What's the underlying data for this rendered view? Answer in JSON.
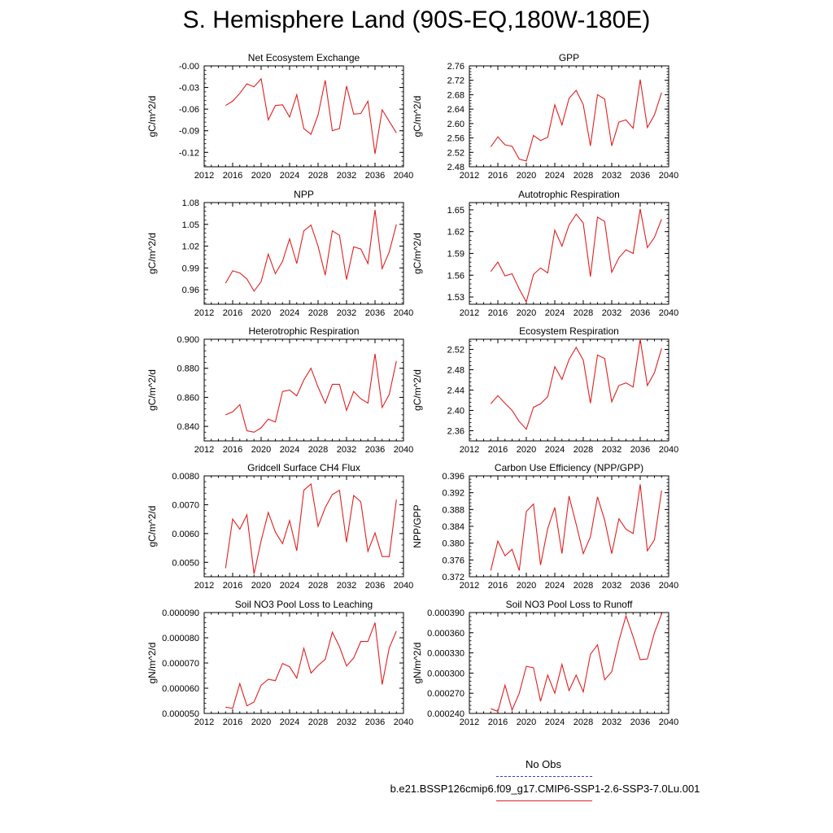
{
  "title": "S. Hemisphere Land (90S-EQ,180W-180E)",
  "legend": {
    "obs_label": "No Obs",
    "obs_color": "#3a3ad0",
    "case_label": "b.e21.BSSP126cmip6.f09_g17.CMIP6-SSP1-2.6-SSP3-7.0Lu.001",
    "case_color": "#e02020"
  },
  "chart_data": [
    {
      "type": "line",
      "title": "Net Ecosystem Exchange",
      "ylabel": "gC/m^2/d",
      "xlim": [
        2012,
        2040
      ],
      "xticks": [
        2012,
        2016,
        2020,
        2024,
        2028,
        2032,
        2036,
        2040
      ],
      "ylim": [
        -0.14,
        0.0
      ],
      "yticks": [
        "-0.00",
        "-0.03",
        "-0.06",
        "-0.09",
        "-0.12"
      ],
      "ytick_values": [
        0.0,
        -0.03,
        -0.06,
        -0.09,
        -0.12
      ],
      "x": [
        2015,
        2016,
        2017,
        2018,
        2019,
        2020,
        2021,
        2022,
        2023,
        2024,
        2025,
        2026,
        2027,
        2028,
        2029,
        2030,
        2031,
        2032,
        2033,
        2034,
        2035,
        2036,
        2037,
        2038,
        2039
      ],
      "y": [
        -0.055,
        -0.049,
        -0.038,
        -0.025,
        -0.029,
        -0.018,
        -0.075,
        -0.055,
        -0.054,
        -0.071,
        -0.04,
        -0.087,
        -0.095,
        -0.068,
        -0.02,
        -0.09,
        -0.087,
        -0.028,
        -0.067,
        -0.066,
        -0.049,
        -0.122,
        -0.061,
        -0.077,
        -0.093
      ]
    },
    {
      "type": "line",
      "title": "GPP",
      "ylabel": "gC/m^2/d",
      "xlim": [
        2012,
        2040
      ],
      "xticks": [
        2012,
        2016,
        2020,
        2024,
        2028,
        2032,
        2036,
        2040
      ],
      "ylim": [
        2.48,
        2.76
      ],
      "yticks": [
        "2.48",
        "2.52",
        "2.56",
        "2.60",
        "2.64",
        "2.68",
        "2.72",
        "2.76"
      ],
      "ytick_values": [
        2.48,
        2.52,
        2.56,
        2.6,
        2.64,
        2.68,
        2.72,
        2.76
      ],
      "x": [
        2015,
        2016,
        2017,
        2018,
        2019,
        2020,
        2021,
        2022,
        2023,
        2024,
        2025,
        2026,
        2027,
        2028,
        2029,
        2030,
        2031,
        2032,
        2033,
        2034,
        2035,
        2036,
        2037,
        2038,
        2039
      ],
      "y": [
        2.535,
        2.563,
        2.541,
        2.537,
        2.501,
        2.496,
        2.567,
        2.553,
        2.562,
        2.652,
        2.596,
        2.67,
        2.692,
        2.652,
        2.538,
        2.68,
        2.668,
        2.538,
        2.604,
        2.61,
        2.587,
        2.722,
        2.589,
        2.624,
        2.686
      ]
    },
    {
      "type": "line",
      "title": "NPP",
      "ylabel": "gC/m^2/d",
      "xlim": [
        2012,
        2040
      ],
      "xticks": [
        2012,
        2016,
        2020,
        2024,
        2028,
        2032,
        2036,
        2040
      ],
      "ylim": [
        0.94,
        1.08
      ],
      "yticks": [
        "0.96",
        "0.99",
        "1.02",
        "1.05",
        "1.08"
      ],
      "ytick_values": [
        0.96,
        0.99,
        1.02,
        1.05,
        1.08
      ],
      "x": [
        2015,
        2016,
        2017,
        2018,
        2019,
        2020,
        2021,
        2022,
        2023,
        2024,
        2025,
        2026,
        2027,
        2028,
        2029,
        2030,
        2031,
        2032,
        2033,
        2034,
        2035,
        2036,
        2037,
        2038,
        2039
      ],
      "y": [
        0.969,
        0.986,
        0.983,
        0.975,
        0.958,
        0.971,
        1.009,
        0.982,
        0.999,
        1.03,
        0.996,
        1.041,
        1.049,
        1.02,
        0.98,
        1.041,
        1.035,
        0.974,
        1.019,
        1.016,
        0.996,
        1.07,
        0.989,
        1.012,
        1.05
      ]
    },
    {
      "type": "line",
      "title": "Autotrophic Respiration",
      "ylabel": "gC/m^2/d",
      "xlim": [
        2012,
        2040
      ],
      "xticks": [
        2012,
        2016,
        2020,
        2024,
        2028,
        2032,
        2036,
        2040
      ],
      "ylim": [
        1.52,
        1.66
      ],
      "yticks": [
        "1.53",
        "1.56",
        "1.59",
        "1.62",
        "1.65"
      ],
      "ytick_values": [
        1.53,
        1.56,
        1.59,
        1.62,
        1.65
      ],
      "x": [
        2015,
        2016,
        2017,
        2018,
        2019,
        2020,
        2021,
        2022,
        2023,
        2024,
        2025,
        2026,
        2027,
        2028,
        2029,
        2030,
        2031,
        2032,
        2033,
        2034,
        2035,
        2036,
        2037,
        2038,
        2039
      ],
      "y": [
        1.565,
        1.578,
        1.559,
        1.562,
        1.541,
        1.523,
        1.561,
        1.57,
        1.563,
        1.622,
        1.6,
        1.629,
        1.644,
        1.632,
        1.558,
        1.64,
        1.634,
        1.564,
        1.584,
        1.595,
        1.59,
        1.651,
        1.598,
        1.612,
        1.637
      ]
    },
    {
      "type": "line",
      "title": "Heterotrophic Respiration",
      "ylabel": "gC/m^2/d",
      "xlim": [
        2012,
        2040
      ],
      "xticks": [
        2012,
        2016,
        2020,
        2024,
        2028,
        2032,
        2036,
        2040
      ],
      "ylim": [
        0.83,
        0.9
      ],
      "yticks": [
        "0.840",
        "0.860",
        "0.880",
        "0.900"
      ],
      "ytick_values": [
        0.84,
        0.86,
        0.88,
        0.9
      ],
      "x": [
        2015,
        2016,
        2017,
        2018,
        2019,
        2020,
        2021,
        2022,
        2023,
        2024,
        2025,
        2026,
        2027,
        2028,
        2029,
        2030,
        2031,
        2032,
        2033,
        2034,
        2035,
        2036,
        2037,
        2038,
        2039
      ],
      "y": [
        0.848,
        0.85,
        0.855,
        0.837,
        0.836,
        0.839,
        0.845,
        0.843,
        0.864,
        0.865,
        0.861,
        0.872,
        0.88,
        0.867,
        0.856,
        0.869,
        0.869,
        0.851,
        0.864,
        0.859,
        0.856,
        0.89,
        0.853,
        0.862,
        0.885
      ]
    },
    {
      "type": "line",
      "title": "Ecosystem Respiration",
      "ylabel": "gC/m^2/d",
      "xlim": [
        2012,
        2040
      ],
      "xticks": [
        2012,
        2016,
        2020,
        2024,
        2028,
        2032,
        2036,
        2040
      ],
      "ylim": [
        2.34,
        2.54
      ],
      "yticks": [
        "2.36",
        "2.40",
        "2.44",
        "2.48",
        "2.52"
      ],
      "ytick_values": [
        2.36,
        2.4,
        2.44,
        2.48,
        2.52
      ],
      "x": [
        2015,
        2016,
        2017,
        2018,
        2019,
        2020,
        2021,
        2022,
        2023,
        2024,
        2025,
        2026,
        2027,
        2028,
        2029,
        2030,
        2031,
        2032,
        2033,
        2034,
        2035,
        2036,
        2037,
        2038,
        2039
      ],
      "y": [
        2.413,
        2.429,
        2.414,
        2.4,
        2.378,
        2.363,
        2.406,
        2.413,
        2.427,
        2.486,
        2.461,
        2.5,
        2.524,
        2.499,
        2.414,
        2.509,
        2.502,
        2.417,
        2.449,
        2.454,
        2.446,
        2.54,
        2.449,
        2.474,
        2.522
      ]
    },
    {
      "type": "line",
      "title": "Gridcell Surface CH4 Flux",
      "ylabel": "gC/m^2/d",
      "xlim": [
        2012,
        2040
      ],
      "xticks": [
        2012,
        2016,
        2020,
        2024,
        2028,
        2032,
        2036,
        2040
      ],
      "ylim": [
        0.0045,
        0.008
      ],
      "yticks": [
        "0.0050",
        "0.0060",
        "0.0070",
        "0.0080"
      ],
      "ytick_values": [
        0.005,
        0.006,
        0.007,
        0.008
      ],
      "x": [
        2015,
        2016,
        2017,
        2018,
        2019,
        2020,
        2021,
        2022,
        2023,
        2024,
        2025,
        2026,
        2027,
        2028,
        2029,
        2030,
        2031,
        2032,
        2033,
        2034,
        2035,
        2036,
        2037,
        2038,
        2039
      ],
      "y": [
        0.0048,
        0.0065,
        0.00615,
        0.00665,
        0.0046,
        0.00575,
        0.00673,
        0.00605,
        0.00565,
        0.00645,
        0.0054,
        0.0075,
        0.00772,
        0.00625,
        0.0069,
        0.00735,
        0.0075,
        0.0057,
        0.00732,
        0.0071,
        0.00538,
        0.00602,
        0.0052,
        0.0052,
        0.00718
      ]
    },
    {
      "type": "line",
      "title": "Carbon Use Efficiency (NPP/GPP)",
      "ylabel": "NPP/GPP",
      "xlim": [
        2012,
        2040
      ],
      "xticks": [
        2012,
        2016,
        2020,
        2024,
        2028,
        2032,
        2036,
        2040
      ],
      "ylim": [
        0.372,
        0.396
      ],
      "yticks": [
        "0.372",
        "0.376",
        "0.380",
        "0.384",
        "0.388",
        "0.392",
        "0.396"
      ],
      "ytick_values": [
        0.372,
        0.376,
        0.38,
        0.384,
        0.388,
        0.392,
        0.396
      ],
      "x": [
        2015,
        2016,
        2017,
        2018,
        2019,
        2020,
        2021,
        2022,
        2023,
        2024,
        2025,
        2026,
        2027,
        2028,
        2029,
        2030,
        2031,
        2032,
        2033,
        2034,
        2035,
        2036,
        2037,
        2038,
        2039
      ],
      "y": [
        0.3735,
        0.3805,
        0.377,
        0.3785,
        0.3735,
        0.3875,
        0.3893,
        0.3748,
        0.3835,
        0.3885,
        0.3775,
        0.3912,
        0.3845,
        0.3775,
        0.3815,
        0.391,
        0.3855,
        0.3775,
        0.3858,
        0.3833,
        0.3823,
        0.394,
        0.3782,
        0.3808,
        0.3925
      ]
    },
    {
      "type": "line",
      "title": "Soil NO3 Pool Loss to Leaching",
      "ylabel": "gN/m^2/d",
      "xlim": [
        2012,
        2040
      ],
      "xticks": [
        2012,
        2016,
        2020,
        2024,
        2028,
        2032,
        2036,
        2040
      ],
      "ylim": [
        5e-05,
        9e-05
      ],
      "yticks": [
        "0.000050",
        "0.000060",
        "0.000070",
        "0.000080",
        "0.000090"
      ],
      "ytick_values": [
        5e-05,
        6e-05,
        7e-05,
        8e-05,
        9e-05
      ],
      "x": [
        2015,
        2016,
        2017,
        2018,
        2019,
        2020,
        2021,
        2022,
        2023,
        2024,
        2025,
        2026,
        2027,
        2028,
        2029,
        2030,
        2031,
        2032,
        2033,
        2034,
        2035,
        2036,
        2037,
        2038,
        2039
      ],
      "y": [
        5.25e-05,
        5.2e-05,
        6.18e-05,
        5.3e-05,
        5.45e-05,
        6.12e-05,
        6.35e-05,
        6.3e-05,
        6.98e-05,
        6.85e-05,
        6.4e-05,
        7.58e-05,
        6.6e-05,
        6.9e-05,
        7.15e-05,
        8.22e-05,
        7.65e-05,
        6.88e-05,
        7.2e-05,
        7.85e-05,
        7.85e-05,
        8.6e-05,
        6.15e-05,
        7.6e-05,
        8.26e-05
      ]
    },
    {
      "type": "line",
      "title": "Soil NO3 Pool Loss to Runoff",
      "ylabel": "gN/m^2/d",
      "xlim": [
        2012,
        2040
      ],
      "xticks": [
        2012,
        2016,
        2020,
        2024,
        2028,
        2032,
        2036,
        2040
      ],
      "ylim": [
        0.00024,
        0.00039
      ],
      "yticks": [
        "0.000240",
        "0.000270",
        "0.000300",
        "0.000330",
        "0.000360",
        "0.000390"
      ],
      "ytick_values": [
        0.00024,
        0.00027,
        0.0003,
        0.00033,
        0.00036,
        0.00039
      ],
      "x": [
        2015,
        2016,
        2017,
        2018,
        2019,
        2020,
        2021,
        2022,
        2023,
        2024,
        2025,
        2026,
        2027,
        2028,
        2029,
        2030,
        2031,
        2032,
        2033,
        2034,
        2035,
        2036,
        2037,
        2038,
        2039
      ],
      "y": [
        0.000247,
        0.000243,
        0.000282,
        0.000245,
        0.00027,
        0.00031,
        0.000308,
        0.000258,
        0.000297,
        0.00027,
        0.000313,
        0.000274,
        0.000297,
        0.000272,
        0.000328,
        0.000342,
        0.00029,
        0.000302,
        0.000348,
        0.000385,
        0.000354,
        0.00032,
        0.000321,
        0.00036,
        0.000388
      ]
    }
  ]
}
